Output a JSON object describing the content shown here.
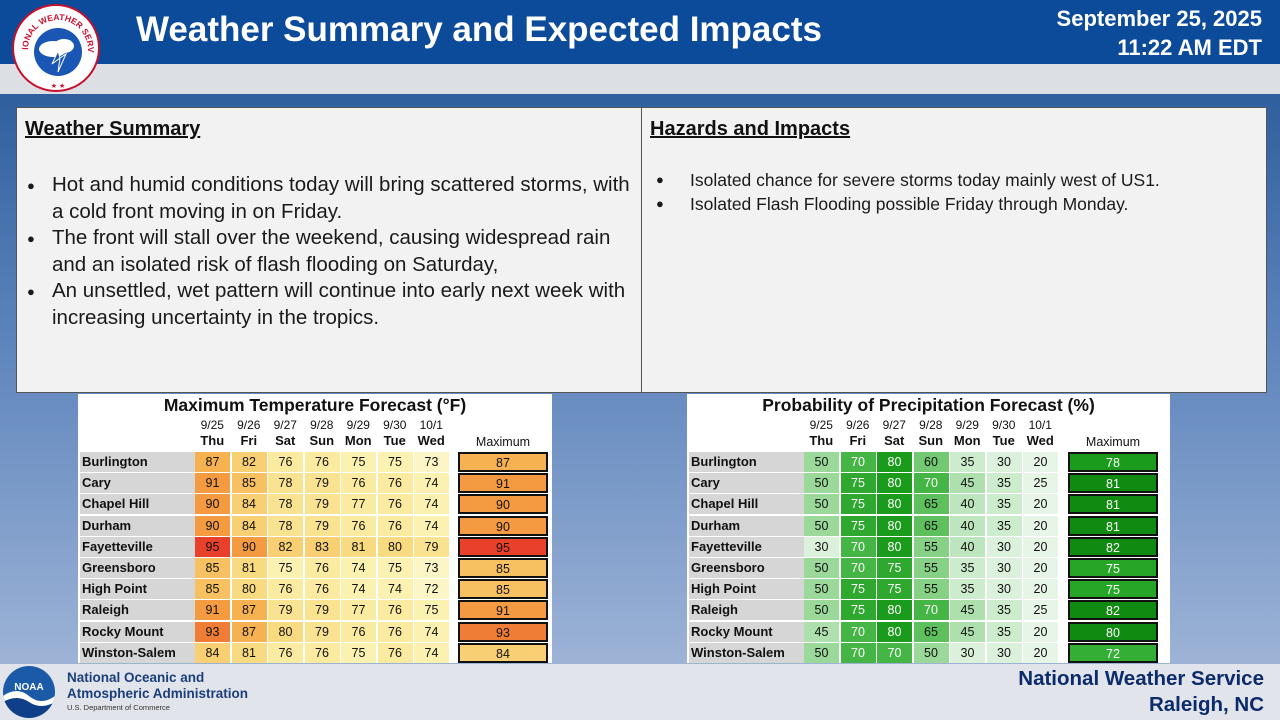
{
  "header": {
    "title": "Weather Summary and Expected Impacts",
    "date": "September 25, 2025",
    "time": "11:22 AM EDT",
    "logo_text": "NATIONAL WEATHER SERVICE"
  },
  "summary": {
    "heading": "Weather Summary",
    "bullets": [
      "Hot and humid conditions today will bring scattered storms, with a cold front moving in on Friday.",
      "The front will stall over the weekend, causing widespread rain and an isolated risk of flash flooding on Saturday,",
      "An unsettled, wet pattern will continue into early next week with increasing uncertainty in the tropics."
    ]
  },
  "hazards": {
    "heading": "Hazards and Impacts",
    "bullets": [
      "Isolated chance for severe storms today mainly west of US1.",
      "Isolated Flash Flooding possible Friday through Monday."
    ]
  },
  "days": [
    {
      "date": "9/25",
      "dow": "Thu"
    },
    {
      "date": "9/26",
      "dow": "Fri"
    },
    {
      "date": "9/27",
      "dow": "Sat"
    },
    {
      "date": "9/28",
      "dow": "Sun"
    },
    {
      "date": "9/29",
      "dow": "Mon"
    },
    {
      "date": "9/30",
      "dow": "Tue"
    },
    {
      "date": "10/1",
      "dow": "Wed"
    }
  ],
  "maximum_label": "Maximum",
  "temp_table": {
    "title": "Maximum Temperature Forecast (°F)",
    "rows": [
      {
        "city": "Burlington",
        "values": [
          87,
          82,
          76,
          76,
          75,
          75,
          73
        ],
        "max": 87
      },
      {
        "city": "Cary",
        "values": [
          91,
          85,
          78,
          79,
          76,
          76,
          74
        ],
        "max": 91
      },
      {
        "city": "Chapel Hill",
        "values": [
          90,
          84,
          78,
          79,
          77,
          76,
          74
        ],
        "max": 90
      },
      {
        "city": "Durham",
        "values": [
          90,
          84,
          78,
          79,
          76,
          76,
          74
        ],
        "max": 90
      },
      {
        "city": "Fayetteville",
        "values": [
          95,
          90,
          82,
          83,
          81,
          80,
          79
        ],
        "max": 95
      },
      {
        "city": "Greensboro",
        "values": [
          85,
          81,
          75,
          76,
          74,
          75,
          73
        ],
        "max": 85
      },
      {
        "city": "High Point",
        "values": [
          85,
          80,
          76,
          76,
          74,
          74,
          72
        ],
        "max": 85
      },
      {
        "city": "Raleigh",
        "values": [
          91,
          87,
          79,
          79,
          77,
          76,
          75
        ],
        "max": 91
      },
      {
        "city": "Rocky Mount",
        "values": [
          93,
          87,
          80,
          79,
          76,
          76,
          74
        ],
        "max": 93
      },
      {
        "city": "Winston-Salem",
        "values": [
          84,
          81,
          76,
          76,
          75,
          76,
          74
        ],
        "max": 84
      }
    ]
  },
  "pop_table": {
    "title": "Probability of Precipitation Forecast (%)",
    "rows": [
      {
        "city": "Burlington",
        "values": [
          50,
          70,
          80,
          60,
          35,
          30,
          20
        ],
        "max": 78
      },
      {
        "city": "Cary",
        "values": [
          50,
          75,
          80,
          70,
          45,
          35,
          25
        ],
        "max": 81
      },
      {
        "city": "Chapel Hill",
        "values": [
          50,
          75,
          80,
          65,
          40,
          35,
          20
        ],
        "max": 81
      },
      {
        "city": "Durham",
        "values": [
          50,
          75,
          80,
          65,
          40,
          35,
          20
        ],
        "max": 81
      },
      {
        "city": "Fayetteville",
        "values": [
          30,
          70,
          80,
          55,
          40,
          30,
          20
        ],
        "max": 82
      },
      {
        "city": "Greensboro",
        "values": [
          50,
          70,
          75,
          55,
          35,
          30,
          20
        ],
        "max": 75
      },
      {
        "city": "High Point",
        "values": [
          50,
          75,
          75,
          55,
          35,
          30,
          20
        ],
        "max": 75
      },
      {
        "city": "Raleigh",
        "values": [
          50,
          75,
          80,
          70,
          45,
          35,
          25
        ],
        "max": 82
      },
      {
        "city": "Rocky Mount",
        "values": [
          45,
          70,
          80,
          65,
          45,
          35,
          20
        ],
        "max": 80
      },
      {
        "city": "Winston-Salem",
        "values": [
          50,
          70,
          70,
          50,
          30,
          30,
          20
        ],
        "max": 72
      }
    ]
  },
  "footer": {
    "noaa_logo": "NOAA",
    "noaa_line1": "National Oceanic and",
    "noaa_line2": "Atmospheric Administration",
    "noaa_line3": "U.S. Department of Commerce",
    "office_line1": "National Weather Service",
    "office_line2": "Raleigh, NC"
  }
}
